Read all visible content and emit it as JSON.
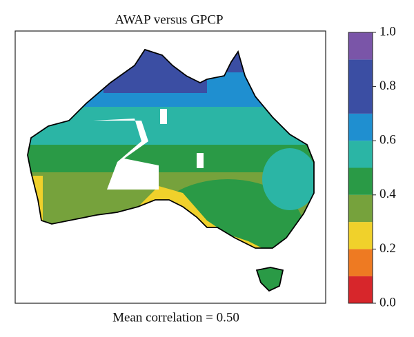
{
  "chart_data": {
    "type": "map",
    "title": "AWAP versus GPCP",
    "xlabel": "Mean correlation = 0.50",
    "colorbar": {
      "lim": [
        0,
        1
      ],
      "ticks": [
        {
          "value": 0,
          "label": "0.0"
        },
        {
          "value": 0.2,
          "label": "0.2"
        },
        {
          "value": 0.4,
          "label": "0.4"
        },
        {
          "value": 0.6,
          "label": "0.6"
        },
        {
          "value": 0.8,
          "label": "0.8"
        },
        {
          "value": 1,
          "label": "1.0"
        }
      ],
      "bounds": [
        0,
        0.1,
        0.2,
        0.3,
        0.4,
        0.5,
        0.6,
        0.7,
        0.9,
        1
      ],
      "colors": [
        "#d7262b",
        "#ee7a22",
        "#f0d12b",
        "#76a23c",
        "#2a9a46",
        "#2bb5a5",
        "#1f8fd0",
        "#3b4ea3",
        "#7a55a8"
      ]
    }
  }
}
